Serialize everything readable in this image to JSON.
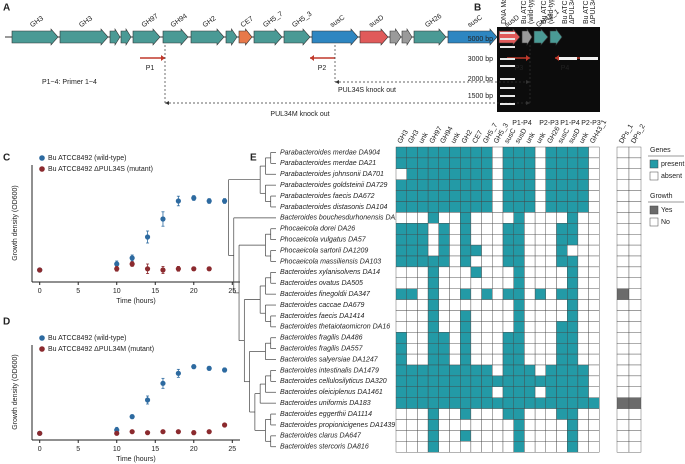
{
  "panels": {
    "a": "A",
    "b": "B",
    "c": "C",
    "d": "D",
    "e": "E"
  },
  "gene_map": {
    "genes": [
      "GH3",
      "GH3",
      "GH97",
      "GH94",
      "GH2",
      "CE7",
      "GH5_7",
      "GH5_3",
      "susC",
      "susD",
      "GH26",
      "susC",
      "susD",
      "GH43_1"
    ],
    "primers": [
      "P1",
      "P2",
      "P3",
      "P4"
    ],
    "primer_note": "P1~4: Primer 1~4",
    "pul34s": "PUL34S knock out",
    "pul34m": "PUL34M knock out"
  },
  "gel": {
    "lanes": [
      [
        "DNA Marker"
      ],
      [
        "Bu ATCC8492",
        "(wild-type)"
      ],
      [
        "Bu ATCC8492",
        "(wild-type)"
      ],
      [
        "Bu ATCC8492",
        "ΔPUL34M (mutant)"
      ],
      [
        "Bu ATCC8492",
        "ΔPUL34M (mutant)"
      ]
    ],
    "markers": [
      "5000 bp",
      "3000 bp",
      "2000 bp",
      "1500 bp"
    ],
    "primer_pairs": [
      "P1-P4",
      "P2-P3",
      "P1-P4",
      "P2-P3"
    ]
  },
  "chart_data": [
    {
      "type": "scatter",
      "xlabel": "Time (hours)",
      "ylabel": "Growth density (OD600)",
      "xlim": [
        -1,
        26
      ],
      "xticks": [
        0,
        5,
        10,
        15,
        20,
        25
      ],
      "ylim": [
        -0.01,
        0.16
      ],
      "legend": "upper left",
      "series": [
        {
          "name": "Bu ATCC8492 (wild-type)",
          "color": "#2d6aa0",
          "x": [
            0,
            10,
            12,
            14,
            16,
            18,
            20,
            22,
            24
          ],
          "values": [
            0.01,
            0.02,
            0.03,
            0.065,
            0.095,
            0.125,
            0.13,
            0.125,
            0.125
          ],
          "errors": [
            0.002,
            0.005,
            0.005,
            0.01,
            0.012,
            0.008,
            0.004,
            0.004,
            0.004
          ]
        },
        {
          "name": "Bu ATCC8492 ΔPUL34S (mutant)",
          "color": "#8b2a2e",
          "x": [
            0,
            10,
            12,
            14,
            16,
            18,
            20,
            22
          ],
          "values": [
            0.01,
            0.012,
            0.02,
            0.012,
            0.01,
            0.012,
            0.012,
            0.012
          ],
          "errors": [
            0.002,
            0.004,
            0.004,
            0.008,
            0.006,
            0.004,
            0.003,
            0.003
          ]
        }
      ]
    },
    {
      "type": "scatter",
      "xlabel": "Time (hours)",
      "ylabel": "Growth density (OD600)",
      "xlim": [
        -1,
        26
      ],
      "xticks": [
        0,
        5,
        10,
        15,
        20,
        25
      ],
      "ylim": [
        -0.01,
        0.23
      ],
      "legend": "upper left",
      "series": [
        {
          "name": "Bu ATCC8492 (wild-type)",
          "color": "#2d6aa0",
          "x": [
            0,
            10,
            12,
            14,
            16,
            18,
            20,
            22,
            24
          ],
          "values": [
            0.01,
            0.02,
            0.06,
            0.11,
            0.16,
            0.19,
            0.21,
            0.205,
            0.2
          ],
          "errors": [
            0.002,
            0.008,
            0.006,
            0.012,
            0.015,
            0.012,
            0.006,
            0.006,
            0.006
          ]
        },
        {
          "name": "Bu ATCC8492 ΔPUL34M (mutant)",
          "color": "#8b2a2e",
          "x": [
            0,
            10,
            12,
            14,
            16,
            18,
            20,
            22,
            24
          ],
          "values": [
            0.01,
            0.01,
            0.015,
            0.012,
            0.015,
            0.015,
            0.012,
            0.015,
            0.035
          ],
          "errors": [
            0.002,
            0.004,
            0.004,
            0.004,
            0.004,
            0.004,
            0.006,
            0.004,
            0.003
          ]
        }
      ]
    }
  ],
  "heatmap": {
    "columns": [
      {
        "label": "GH3",
        "color": "#2a9aa6"
      },
      {
        "label": "GH3",
        "color": "#2a9aa6"
      },
      {
        "label": "unk",
        "color": "#6f8fa8"
      },
      {
        "label": "GH97",
        "color": "#2a9aa6"
      },
      {
        "label": "GH94",
        "color": "#2a9aa6"
      },
      {
        "label": "unk",
        "color": "#6f8fa8"
      },
      {
        "label": "GH2",
        "color": "#2a9aa6"
      },
      {
        "label": "CE7",
        "color": "#e8794a"
      },
      {
        "label": "GH5_7",
        "color": "#2a9aa6"
      },
      {
        "label": "GH5_3",
        "color": "#2a9aa6"
      },
      {
        "label": "susC",
        "color": "#2e86c1"
      },
      {
        "label": "susD",
        "color": "#e05a5a"
      },
      {
        "label": "unk",
        "color": "#6f8fa8"
      },
      {
        "label": "unk",
        "color": "#6f8fa8"
      },
      {
        "label": "GH26",
        "color": "#2a9aa6"
      },
      {
        "label": "susC",
        "color": "#2e86c1"
      },
      {
        "label": "susD",
        "color": "#e05a5a"
      },
      {
        "label": "unk",
        "color": "#6f8fa8"
      },
      {
        "label": "GH43_1",
        "color": "#2a9aa6"
      }
    ],
    "growth_columns": [
      "DPs_1",
      "DPs_2"
    ],
    "present_color": "#239aa6",
    "growth_color": "#6b6b6b",
    "rows": [
      {
        "name": "Parabacteroides merdae DA904",
        "color": "#c0272d",
        "genes": [
          1,
          1,
          1,
          1,
          1,
          1,
          1,
          1,
          1,
          0,
          1,
          1,
          1,
          0,
          1,
          1,
          1,
          1,
          0
        ],
        "growth": [
          0,
          0
        ]
      },
      {
        "name": "Parabacteroides merdae DA21",
        "color": "#c0272d",
        "genes": [
          1,
          1,
          1,
          1,
          1,
          1,
          1,
          1,
          1,
          0,
          1,
          1,
          1,
          0,
          1,
          1,
          1,
          1,
          0
        ],
        "growth": [
          0,
          0
        ]
      },
      {
        "name": "Parabacteroides johnsonii DA701",
        "color": "#c0272d",
        "genes": [
          0,
          1,
          1,
          1,
          1,
          1,
          1,
          1,
          1,
          0,
          1,
          1,
          1,
          0,
          1,
          1,
          1,
          1,
          0
        ],
        "growth": [
          0,
          0
        ]
      },
      {
        "name": "Parabacteroides goldsteinii DA729",
        "color": "#c0272d",
        "genes": [
          1,
          1,
          1,
          1,
          1,
          1,
          1,
          1,
          1,
          0,
          1,
          1,
          1,
          0,
          1,
          1,
          1,
          1,
          0
        ],
        "growth": [
          0,
          0
        ]
      },
      {
        "name": "Parabacteroides faecis DA672",
        "color": "#c0272d",
        "genes": [
          1,
          1,
          1,
          1,
          1,
          1,
          1,
          1,
          1,
          0,
          1,
          1,
          1,
          0,
          1,
          1,
          1,
          1,
          0
        ],
        "growth": [
          0,
          0
        ]
      },
      {
        "name": "Parabacteroides distasonis DA104",
        "color": "#c0272d",
        "genes": [
          1,
          1,
          1,
          1,
          1,
          1,
          1,
          1,
          1,
          0,
          1,
          1,
          1,
          0,
          1,
          1,
          1,
          1,
          0
        ],
        "growth": [
          0,
          0
        ]
      },
      {
        "name": "Bacteroides bouchesdurhonensis DA173",
        "color": "#2b3f8f",
        "genes": [
          0,
          0,
          0,
          1,
          0,
          0,
          1,
          0,
          0,
          0,
          0,
          1,
          0,
          0,
          0,
          0,
          1,
          0,
          0
        ],
        "growth": [
          0,
          0
        ]
      },
      {
        "name": "Phocaeicola dorei DA26",
        "color": "#3aa776",
        "genes": [
          1,
          1,
          1,
          0,
          1,
          0,
          1,
          0,
          0,
          0,
          1,
          1,
          0,
          0,
          0,
          1,
          1,
          0,
          0
        ],
        "growth": [
          0,
          0
        ]
      },
      {
        "name": "Phocaeicola vulgatus DA57",
        "color": "#3aa776",
        "genes": [
          1,
          1,
          1,
          0,
          1,
          0,
          1,
          0,
          0,
          0,
          1,
          1,
          0,
          0,
          0,
          1,
          1,
          0,
          0
        ],
        "growth": [
          0,
          0
        ]
      },
      {
        "name": "Phocaeicola sartorii DA1209",
        "color": "#3aa776",
        "genes": [
          1,
          1,
          1,
          0,
          1,
          0,
          1,
          1,
          0,
          0,
          1,
          1,
          0,
          0,
          0,
          1,
          0,
          0,
          0
        ],
        "growth": [
          0,
          0
        ]
      },
      {
        "name": "Phocaeicola massiliensis DA103",
        "color": "#3aa776",
        "genes": [
          1,
          1,
          1,
          1,
          1,
          0,
          1,
          0,
          0,
          0,
          1,
          1,
          0,
          0,
          0,
          1,
          1,
          0,
          0
        ],
        "growth": [
          0,
          0
        ]
      },
      {
        "name": "Bacteroides xylanisolvens DA14",
        "color": "#2b3f8f",
        "genes": [
          0,
          0,
          0,
          1,
          0,
          0,
          0,
          1,
          0,
          0,
          0,
          1,
          0,
          0,
          0,
          0,
          1,
          0,
          0
        ],
        "growth": [
          0,
          0
        ]
      },
      {
        "name": "Bacteroides ovatus DA505",
        "color": "#2b3f8f",
        "genes": [
          0,
          0,
          0,
          1,
          0,
          0,
          0,
          0,
          0,
          0,
          0,
          1,
          0,
          0,
          0,
          0,
          1,
          0,
          0
        ],
        "growth": [
          0,
          0
        ]
      },
      {
        "name": "Bacteroides finegoldii DA347",
        "color": "#2b3f8f",
        "genes": [
          1,
          1,
          0,
          1,
          0,
          0,
          1,
          0,
          1,
          0,
          1,
          1,
          0,
          1,
          0,
          1,
          1,
          0,
          0
        ],
        "growth": [
          1,
          0
        ]
      },
      {
        "name": "Bacteroides caccae DA679",
        "color": "#2b3f8f",
        "genes": [
          0,
          0,
          0,
          1,
          0,
          0,
          0,
          0,
          0,
          0,
          0,
          1,
          0,
          0,
          0,
          0,
          1,
          0,
          0
        ],
        "growth": [
          0,
          0
        ]
      },
      {
        "name": "Bacteroides faecis DA1414",
        "color": "#2b3f8f",
        "genes": [
          0,
          0,
          0,
          1,
          0,
          0,
          1,
          0,
          0,
          0,
          0,
          1,
          0,
          0,
          0,
          0,
          1,
          0,
          0
        ],
        "growth": [
          0,
          0
        ]
      },
      {
        "name": "Bacteroides thetaiotaomicron DA16",
        "color": "#2b3f8f",
        "genes": [
          0,
          0,
          0,
          1,
          0,
          0,
          1,
          0,
          0,
          0,
          0,
          1,
          0,
          0,
          0,
          1,
          1,
          0,
          0
        ],
        "growth": [
          0,
          0
        ]
      },
      {
        "name": "Bacteroides fragilis DA486",
        "color": "#2b3f8f",
        "genes": [
          1,
          0,
          0,
          1,
          1,
          0,
          1,
          0,
          0,
          0,
          1,
          1,
          0,
          0,
          0,
          1,
          1,
          0,
          0
        ],
        "growth": [
          0,
          0
        ]
      },
      {
        "name": "Bacteroides fragilis DA557",
        "color": "#2b3f8f",
        "genes": [
          1,
          0,
          0,
          1,
          1,
          0,
          1,
          0,
          0,
          0,
          1,
          1,
          0,
          0,
          0,
          1,
          1,
          0,
          0
        ],
        "growth": [
          0,
          0
        ]
      },
      {
        "name": "Bacteroides salyersiae DA1247",
        "color": "#2b3f8f",
        "genes": [
          1,
          0,
          0,
          1,
          1,
          0,
          1,
          0,
          0,
          0,
          1,
          1,
          0,
          0,
          0,
          1,
          1,
          0,
          0
        ],
        "growth": [
          0,
          0
        ]
      },
      {
        "name": "Bacteroides intestinalis DA1479",
        "color": "#2b3f8f",
        "genes": [
          1,
          1,
          1,
          1,
          1,
          1,
          1,
          1,
          1,
          0,
          1,
          1,
          1,
          0,
          1,
          1,
          1,
          1,
          0
        ],
        "growth": [
          0,
          0
        ]
      },
      {
        "name": "Bacteroides cellulosilyticus DA320",
        "color": "#2b3f8f",
        "genes": [
          1,
          1,
          1,
          1,
          1,
          1,
          1,
          1,
          1,
          1,
          1,
          1,
          1,
          1,
          1,
          1,
          1,
          1,
          0
        ],
        "growth": [
          0,
          0
        ]
      },
      {
        "name": "Bacteroides oleiciplenus DA1461",
        "color": "#2b3f8f",
        "genes": [
          1,
          1,
          1,
          1,
          1,
          1,
          1,
          1,
          1,
          0,
          1,
          1,
          1,
          0,
          1,
          1,
          1,
          1,
          0
        ],
        "growth": [
          0,
          0
        ]
      },
      {
        "name": "Bacteroides uniformis DA183",
        "color": "#2b3f8f",
        "genes": [
          1,
          1,
          1,
          1,
          1,
          1,
          1,
          1,
          1,
          1,
          1,
          1,
          1,
          1,
          1,
          1,
          1,
          1,
          1
        ],
        "growth": [
          1,
          1
        ]
      },
      {
        "name": "Bacteroides eggerthii DA1114",
        "color": "#2b3f8f",
        "genes": [
          0,
          0,
          0,
          1,
          0,
          0,
          1,
          0,
          0,
          0,
          1,
          1,
          0,
          0,
          0,
          1,
          1,
          0,
          0
        ],
        "growth": [
          0,
          0
        ]
      },
      {
        "name": "Bacteroides propionicigenes DA1439",
        "color": "#2b3f8f",
        "genes": [
          0,
          0,
          0,
          1,
          0,
          0,
          0,
          0,
          0,
          0,
          0,
          1,
          0,
          0,
          0,
          0,
          1,
          0,
          0
        ],
        "growth": [
          0,
          0
        ]
      },
      {
        "name": "Bacteroides clarus DA647",
        "color": "#2b3f8f",
        "genes": [
          0,
          0,
          0,
          1,
          0,
          0,
          1,
          0,
          0,
          0,
          0,
          1,
          0,
          0,
          0,
          0,
          1,
          0,
          0
        ],
        "growth": [
          0,
          0
        ]
      },
      {
        "name": "Bacteroides stercoris DA816",
        "color": "#2b3f8f",
        "genes": [
          0,
          0,
          0,
          1,
          0,
          0,
          0,
          0,
          0,
          0,
          0,
          1,
          0,
          0,
          0,
          0,
          1,
          0,
          0
        ],
        "growth": [
          0,
          0
        ]
      }
    ],
    "legend": {
      "genes": "Genes",
      "present": "present",
      "absent": "absent",
      "growth": "Growth",
      "yes": "Yes",
      "no": "No"
    }
  }
}
